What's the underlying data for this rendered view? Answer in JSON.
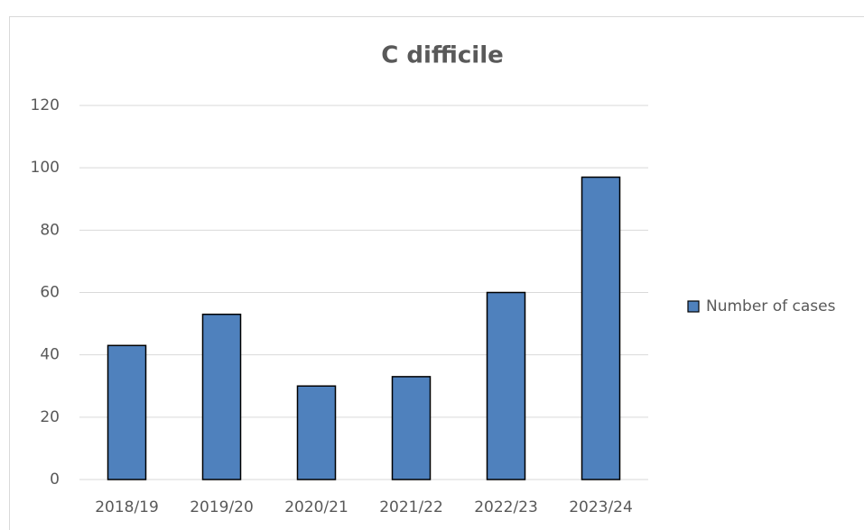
{
  "chart_data": {
    "type": "bar",
    "title": "C difficile",
    "categories": [
      "2018/19",
      "2019/20",
      "2020/21",
      "2021/22",
      "2022/23",
      "2023/24"
    ],
    "series": [
      {
        "name": "Number of cases",
        "color": "#4f81bd",
        "values": [
          43,
          53,
          30,
          33,
          60,
          97
        ]
      }
    ],
    "ylim": [
      0,
      120
    ],
    "yticks": [
      0,
      20,
      40,
      60,
      80,
      100,
      120
    ],
    "grid": true,
    "legend": "right"
  }
}
